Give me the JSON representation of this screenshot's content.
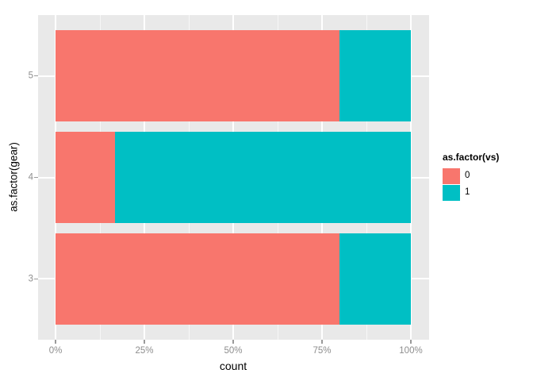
{
  "chart_data": {
    "type": "bar",
    "orientation": "horizontal",
    "stacked": "percent_fill",
    "title": "",
    "xlabel": "count",
    "ylabel": "as.factor(gear)",
    "categories": [
      "3",
      "4",
      "5"
    ],
    "series": [
      {
        "name": "0",
        "color": "#F8766D",
        "values": [
          80,
          16.7,
          80
        ]
      },
      {
        "name": "1",
        "color": "#00BFC4",
        "values": [
          20,
          83.3,
          20
        ]
      }
    ],
    "x_tick_labels": [
      "0%",
      "25%",
      "50%",
      "75%",
      "100%"
    ],
    "x_tick_values": [
      0,
      25,
      50,
      75,
      100
    ],
    "x_minor_values": [
      12.5,
      37.5,
      62.5,
      87.5
    ],
    "xlim": [
      0,
      100
    ],
    "legend_title": "as.factor(vs)",
    "legend_position": "right",
    "grid": "on",
    "colors": {
      "panel_bg": "#E9E9E9",
      "grid_major": "#FFFFFF",
      "axis_text": "#8E8E8E",
      "tick_mark": "#9A9A9A",
      "axis_title": "#000000"
    }
  }
}
